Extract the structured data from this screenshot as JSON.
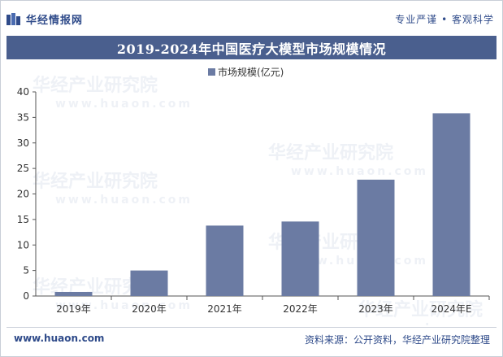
{
  "header": {
    "brand": "华经情报网",
    "tagline": "专业严谨 • 客观科学"
  },
  "title": "2019-2024年中国医疗大模型市场规模情况",
  "chart_data": {
    "type": "bar",
    "title": "2019-2024年中国医疗大模型市场规模情况",
    "legend": "市场规模(亿元)",
    "categories": [
      "2019年",
      "2020年",
      "2021年",
      "2022年",
      "2023年",
      "2024年E"
    ],
    "series": [
      {
        "name": "市场规模(亿元)",
        "values": [
          0.8,
          5.0,
          13.8,
          14.6,
          22.8,
          35.8
        ]
      }
    ],
    "ylim": [
      0,
      40
    ],
    "yticks": [
      0,
      5,
      10,
      15,
      20,
      25,
      30,
      35,
      40
    ],
    "xlabel": "",
    "ylabel": "",
    "bar_color": "#6b7ba3"
  },
  "footer": {
    "website": "www.huaon.com",
    "source": "资料来源：公开资料，华经产业研究院整理"
  },
  "watermark": {
    "name": "华经产业研究院",
    "url": "www.huaon.com"
  }
}
